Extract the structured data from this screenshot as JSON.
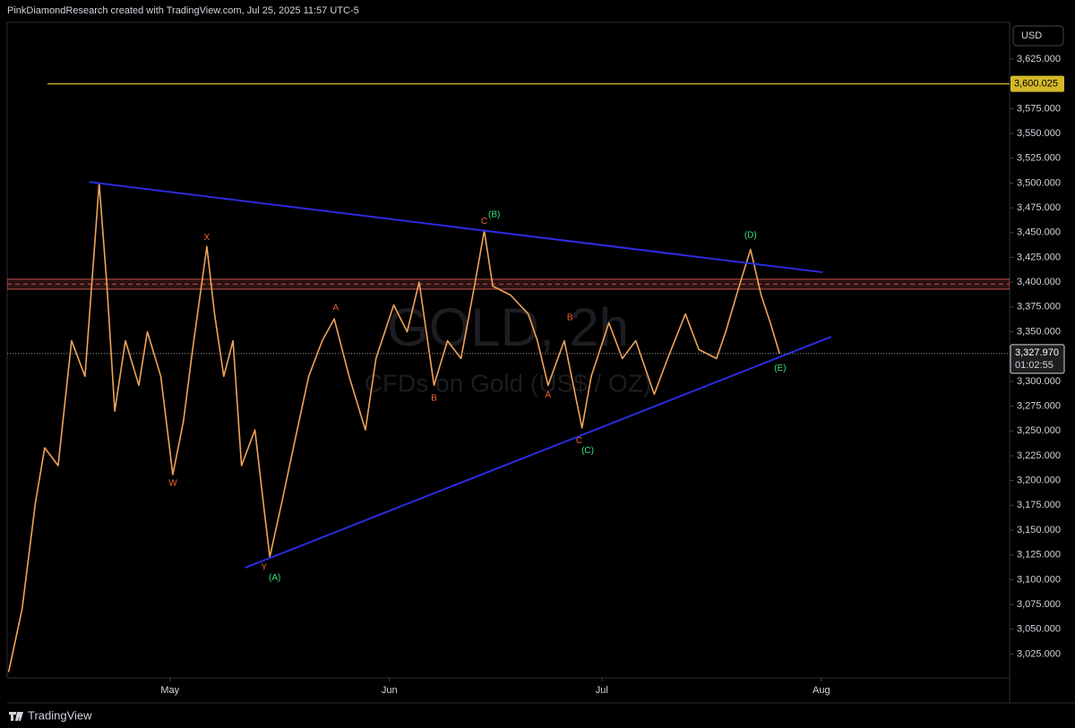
{
  "header": "PinkDiamondResearch created with TradingView.com, Jul 25, 2025 11:57 UTC-5",
  "footer": "TradingView",
  "chart_data": {
    "type": "line",
    "watermark": {
      "symbol": "GOLD, 2h",
      "description": "CFDs on Gold (US$ / OZ)"
    },
    "currency": "USD",
    "color": "#f0a35a",
    "x": [
      -22.8,
      -20.9,
      -19.0,
      -17.7,
      -15.8,
      -13.9,
      -12.0,
      -10.8,
      -10.0,
      -8.9,
      -7.8,
      -6.3,
      -4.4,
      -3.2,
      -1.3,
      0.4,
      1.9,
      3.2,
      5.2,
      6.3,
      7.6,
      8.9,
      10.1,
      12.0,
      13.3,
      14.1,
      15.8,
      17.7,
      19.6,
      21.5,
      23.2,
      25.3,
      27.6,
      29.1,
      31.6,
      33.5,
      35.2,
      37.3,
      39.2,
      41.1,
      43.0,
      44.4,
      45.6,
      48.1,
      50.6,
      51.9,
      53.4,
      55.7,
      58.2,
      59.5,
      62.0,
      63.9,
      65.8,
      68.4,
      70.3,
      72.8,
      74.7,
      77.2,
      78.5,
      80.4,
      82.0,
      83.5,
      84.8,
      86.1
    ],
    "values": [
      3007,
      3070,
      3178,
      3233,
      3215,
      3341,
      3305,
      3422,
      3500,
      3396,
      3270,
      3341,
      3296,
      3350,
      3305,
      3206,
      3260,
      3332,
      3436,
      3368,
      3305,
      3341,
      3215,
      3251,
      3170,
      3123,
      3178,
      3242,
      3305,
      3341,
      3363,
      3305,
      3251,
      3323,
      3377,
      3350,
      3400,
      3296,
      3341,
      3323,
      3396,
      3452,
      3396,
      3387,
      3368,
      3341,
      3296,
      3341,
      3253,
      3305,
      3359,
      3323,
      3341,
      3287,
      3323,
      3368,
      3332,
      3323,
      3350,
      3396,
      3433,
      3387,
      3359,
      3327.97
    ],
    "xlim": [
      -23,
      118.6
    ],
    "xticks": [
      {
        "value": 0,
        "label": "May"
      },
      {
        "value": 31,
        "label": "Jun"
      },
      {
        "value": 61,
        "label": "Jul"
      },
      {
        "value": 92,
        "label": "Aug"
      }
    ],
    "ylim": [
      3001,
      3662
    ],
    "yticks": [
      {
        "value": 3025,
        "label": "3,025.000"
      },
      {
        "value": 3050,
        "label": "3,050.000"
      },
      {
        "value": 3075,
        "label": "3,075.000"
      },
      {
        "value": 3100,
        "label": "3,100.000"
      },
      {
        "value": 3125,
        "label": "3,125.000"
      },
      {
        "value": 3150,
        "label": "3,150.000"
      },
      {
        "value": 3175,
        "label": "3,175.000"
      },
      {
        "value": 3200,
        "label": "3,200.000"
      },
      {
        "value": 3225,
        "label": "3,225.000"
      },
      {
        "value": 3250,
        "label": "3,250.000"
      },
      {
        "value": 3275,
        "label": "3,275.000"
      },
      {
        "value": 3300,
        "label": "3,300.000"
      },
      {
        "value": 3350,
        "label": "3,350.000"
      },
      {
        "value": 3375,
        "label": "3,375.000"
      },
      {
        "value": 3400,
        "label": "3,400.000"
      },
      {
        "value": 3425,
        "label": "3,425.000"
      },
      {
        "value": 3450,
        "label": "3,450.000"
      },
      {
        "value": 3475,
        "label": "3,475.000"
      },
      {
        "value": 3500,
        "label": "3,500.000"
      },
      {
        "value": 3525,
        "label": "3,525.000"
      },
      {
        "value": 3550,
        "label": "3,550.000"
      },
      {
        "value": 3575,
        "label": "3,575.000"
      },
      {
        "value": 3625,
        "label": "3,625.000"
      }
    ],
    "hline": {
      "value": 3600.025,
      "label": "3,600.025",
      "x_start": -17.3,
      "color": "#d4b82a"
    },
    "last_price": {
      "value": 3327.97,
      "label": "3,327.970",
      "countdown": "01:02:55"
    },
    "zone": [
      3393,
      3403
    ],
    "zone_mid": 3398,
    "zone_color": "#c0504d",
    "trendlines": [
      {
        "x": [
          -11.4,
          92.2
        ],
        "y": [
          3501,
          3410
        ],
        "color": "#2b2be0"
      },
      {
        "x": [
          10.6,
          93.4
        ],
        "y": [
          3112,
          3345
        ],
        "color": "#2b2be0"
      }
    ],
    "annotations": [
      {
        "text": "X",
        "x": 5.2,
        "y": 3445,
        "color": "#f2652c"
      },
      {
        "text": "W",
        "x": 0.4,
        "y": 3197,
        "color": "#f2652c"
      },
      {
        "text": "Y",
        "x": 13.3,
        "y": 3112,
        "color": "#f2652c"
      },
      {
        "text": "(A)",
        "x": 14.8,
        "y": 3102,
        "color": "#3be07a"
      },
      {
        "text": "A",
        "x": 23.4,
        "y": 3374,
        "color": "#f2652c"
      },
      {
        "text": "B",
        "x": 37.3,
        "y": 3283,
        "color": "#f2652c"
      },
      {
        "text": "C",
        "x": 44.4,
        "y": 3461,
        "color": "#f2652c"
      },
      {
        "text": "(B)",
        "x": 45.8,
        "y": 3468,
        "color": "#3be07a"
      },
      {
        "text": "B",
        "x": 56.5,
        "y": 3364,
        "color": "#f2652c"
      },
      {
        "text": "A",
        "x": 53.4,
        "y": 3286,
        "color": "#f2652c"
      },
      {
        "text": "C",
        "x": 57.8,
        "y": 3240,
        "color": "#f2652c"
      },
      {
        "text": "(C)",
        "x": 59.0,
        "y": 3230,
        "color": "#3be07a"
      },
      {
        "text": "(D)",
        "x": 82.0,
        "y": 3447,
        "color": "#3be07a"
      },
      {
        "text": "(E)",
        "x": 86.2,
        "y": 3313,
        "color": "#3be07a"
      }
    ]
  }
}
